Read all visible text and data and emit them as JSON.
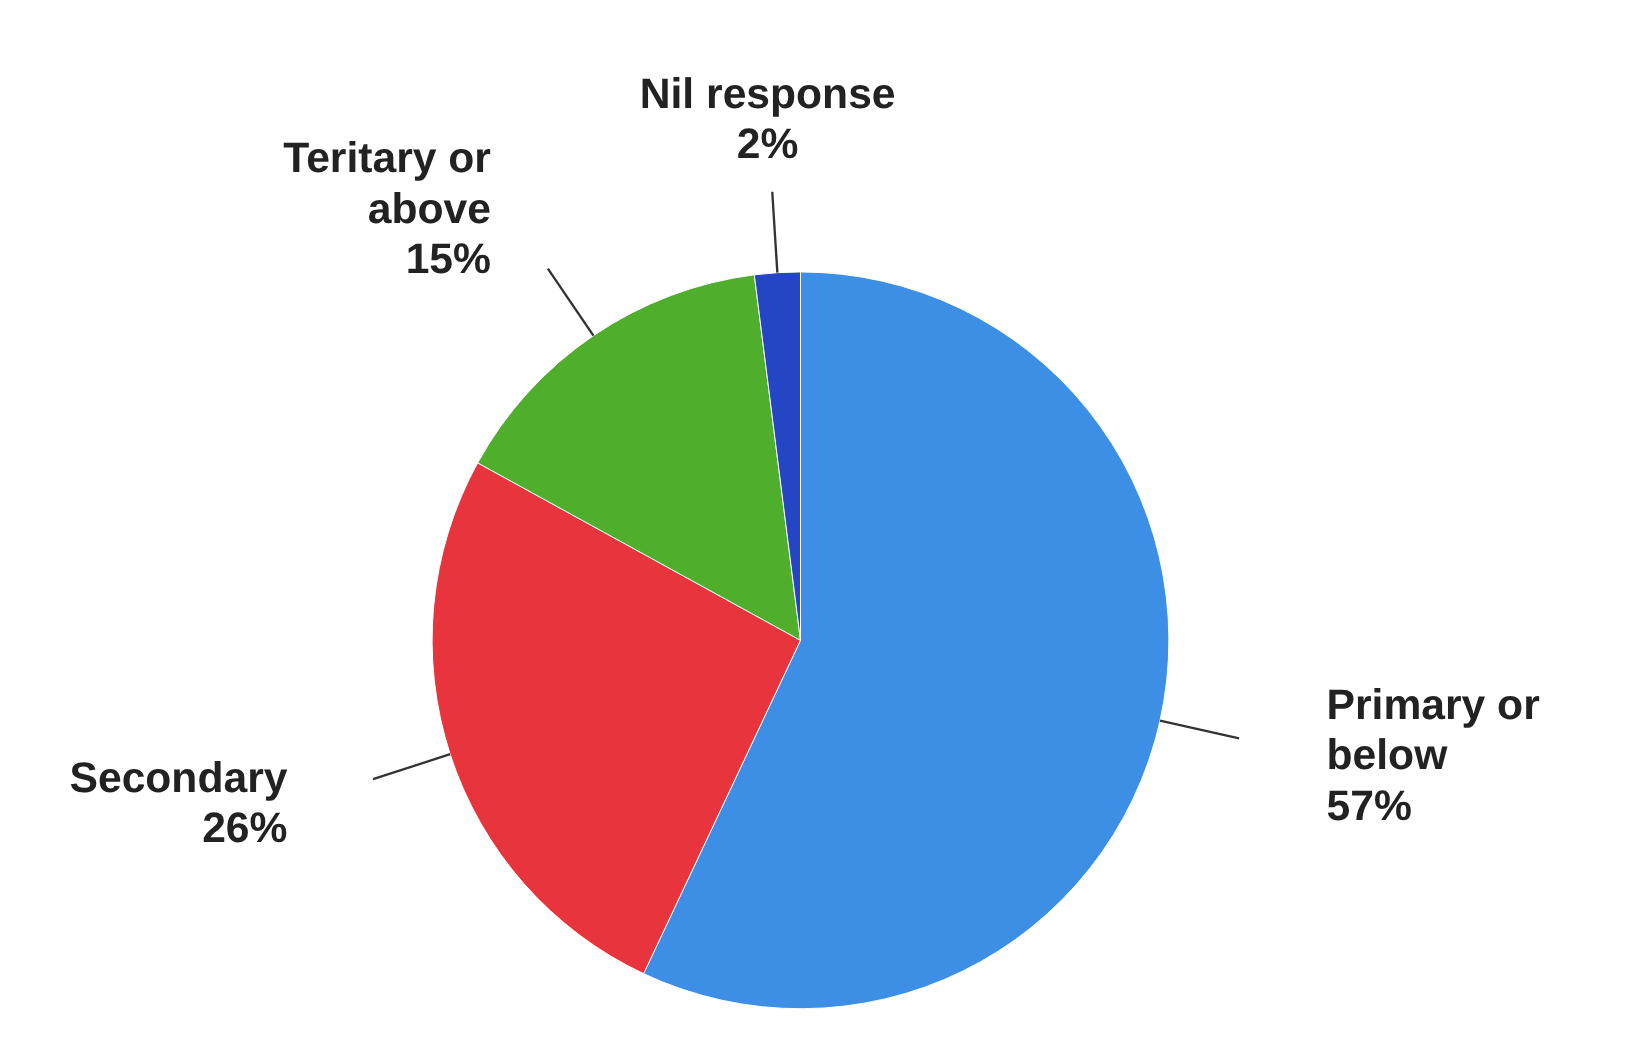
{
  "chart_data": {
    "type": "pie",
    "categories": [
      "Primary or below",
      "Secondary",
      "Teritary or above",
      "Nil response"
    ],
    "values": [
      57,
      26,
      15,
      2
    ],
    "value_labels": [
      "57%",
      "26%",
      "15%",
      "2%"
    ],
    "colors": [
      "#3d8fe6",
      "#e8343c",
      "#4faf2c",
      "#2445c4"
    ]
  }
}
